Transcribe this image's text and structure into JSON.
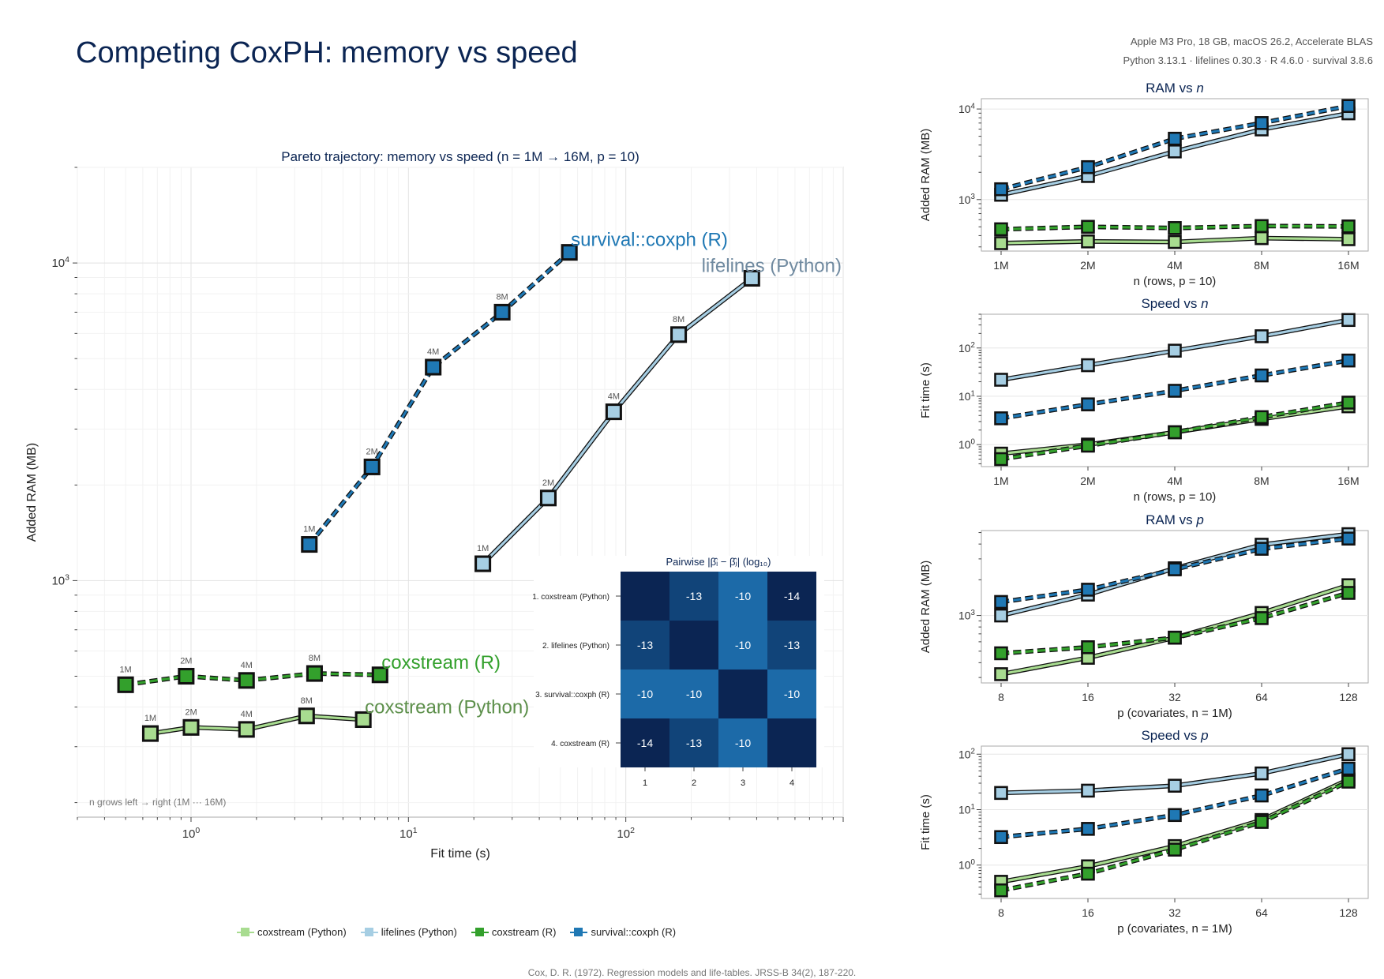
{
  "page": {
    "title": "Competing CoxPH: memory vs speed",
    "meta_line1": "Apple M3 Pro, 18 GB, macOS 26.2, Accelerate BLAS",
    "meta_line2": "Python 3.13.1 · lifelines 0.30.3 · R 4.6.0 · survival 3.8.6",
    "citation": "Cox, D. R. (1972). Regression models and life-tables. JRSS-B 34(2), 187-220."
  },
  "series_style": [
    {
      "name": "coxstream (Python)",
      "color": "#a8dc90",
      "dash": false
    },
    {
      "name": "lifelines (Python)",
      "color": "#a6cee3",
      "dash": false
    },
    {
      "name": "coxstream (R)",
      "color": "#33a02c",
      "dash": true
    },
    {
      "name": "survival::coxph (R)",
      "color": "#1f78b4",
      "dash": true
    }
  ],
  "chart_data": [
    {
      "id": "pareto",
      "type": "line",
      "title": "Pareto trajectory: memory vs speed  (n = 1M → 16M, p = 10)",
      "xlabel": "Fit time (s)",
      "ylabel": "Added RAM (MB)",
      "xscale": "log",
      "yscale": "log",
      "xlim": [
        0.3,
        1000
      ],
      "ylim": [
        180,
        20000
      ],
      "xticks": [
        {
          "v": 1,
          "label": "10^0"
        },
        {
          "v": 10,
          "label": "10^1"
        },
        {
          "v": 100,
          "label": "10^2"
        }
      ],
      "yticks": [
        {
          "v": 1000,
          "label": "10^3"
        },
        {
          "v": 10000,
          "label": "10^4"
        }
      ],
      "grid": true,
      "annotation": "n grows left → right (1M ··· 16M)",
      "point_labels": [
        "1M",
        "2M",
        "4M",
        "8M"
      ],
      "series": [
        {
          "name": "coxstream (Python)",
          "x": [
            0.65,
            1.0,
            1.8,
            3.4,
            6.2
          ],
          "y": [
            330,
            345,
            340,
            375,
            365
          ],
          "end_label": "coxstream (Python)",
          "end_color": "#5c8f4a"
        },
        {
          "name": "lifelines (Python)",
          "x": [
            22,
            44,
            88,
            175,
            380
          ],
          "y": [
            1130,
            1820,
            3400,
            5950,
            8950
          ],
          "end_label": "lifelines (Python)",
          "end_color": "#708aa0"
        },
        {
          "name": "coxstream (R)",
          "x": [
            0.5,
            0.95,
            1.8,
            3.7,
            7.4
          ],
          "y": [
            470,
            500,
            485,
            510,
            505
          ],
          "end_label": "coxstream (R)",
          "end_color": "#33a02c"
        },
        {
          "name": "survival::coxph (R)",
          "x": [
            3.5,
            6.8,
            13,
            27,
            55
          ],
          "y": [
            1300,
            2280,
            4700,
            7000,
            10800
          ],
          "end_label": "survival::coxph (R)",
          "end_color": "#1f78b4"
        }
      ]
    },
    {
      "id": "heatmap",
      "type": "heatmap",
      "title": "Pairwise |β̂ᵢ − β̂ⱼ|  (log₁₀)",
      "rows": [
        "1. coxstream (Python)",
        "2. lifelines (Python)",
        "3. survival::coxph (R)",
        "4. coxstream (R)"
      ],
      "cols": [
        "1",
        "2",
        "3",
        "4"
      ],
      "values": [
        [
          null,
          -13,
          -10,
          -14
        ],
        [
          -13,
          null,
          -10,
          -13
        ],
        [
          -10,
          -10,
          null,
          -10
        ],
        [
          -14,
          -13,
          -10,
          null
        ]
      ]
    },
    {
      "id": "ram_n",
      "type": "line",
      "title": "RAM vs ",
      "title_var": "n",
      "xlabel": "n (rows, p = 10)",
      "ylabel": "Added RAM (MB)",
      "categories": [
        "1M",
        "2M",
        "4M",
        "8M",
        "16M"
      ],
      "yscale": "log",
      "ylim": [
        270,
        13000
      ],
      "yticks": [
        {
          "v": 1000,
          "label": "10^3"
        },
        {
          "v": 10000,
          "label": "10^4"
        }
      ],
      "series": [
        {
          "name": "coxstream (Python)",
          "values": [
            330,
            345,
            340,
            375,
            365
          ]
        },
        {
          "name": "lifelines (Python)",
          "values": [
            1130,
            1820,
            3400,
            5950,
            8950
          ]
        },
        {
          "name": "coxstream (R)",
          "values": [
            470,
            500,
            485,
            510,
            505
          ]
        },
        {
          "name": "survival::coxph (R)",
          "values": [
            1300,
            2280,
            4700,
            7000,
            10800
          ]
        }
      ]
    },
    {
      "id": "speed_n",
      "type": "line",
      "title": "Speed vs ",
      "title_var": "n",
      "xlabel": "n (rows, p = 10)",
      "ylabel": "Fit time (s)",
      "categories": [
        "1M",
        "2M",
        "4M",
        "8M",
        "16M"
      ],
      "yscale": "log",
      "ylim": [
        0.35,
        500
      ],
      "yticks": [
        {
          "v": 1,
          "label": "10^0"
        },
        {
          "v": 10,
          "label": "10^1"
        },
        {
          "v": 100,
          "label": "10^2"
        }
      ],
      "series": [
        {
          "name": "coxstream (Python)",
          "values": [
            0.65,
            1.0,
            1.8,
            3.4,
            6.2
          ]
        },
        {
          "name": "lifelines (Python)",
          "values": [
            22,
            44,
            88,
            175,
            380
          ]
        },
        {
          "name": "coxstream (R)",
          "values": [
            0.5,
            0.95,
            1.8,
            3.7,
            7.4
          ]
        },
        {
          "name": "survival::coxph (R)",
          "values": [
            3.5,
            6.8,
            13,
            27,
            55
          ]
        }
      ]
    },
    {
      "id": "ram_p",
      "type": "line",
      "title": "RAM vs ",
      "title_var": "p",
      "xlabel": "p (covariates, n = 1M)",
      "ylabel": "Added RAM (MB)",
      "categories": [
        "8",
        "16",
        "32",
        "64",
        "128"
      ],
      "yscale": "log",
      "ylim": [
        270,
        5200
      ],
      "yticks": [
        {
          "v": 1000,
          "label": "10^3"
        }
      ],
      "series": [
        {
          "name": "coxstream (Python)",
          "values": [
            320,
            440,
            650,
            1050,
            1800
          ]
        },
        {
          "name": "lifelines (Python)",
          "values": [
            1000,
            1500,
            2500,
            3950,
            4850
          ]
        },
        {
          "name": "coxstream (R)",
          "values": [
            480,
            540,
            650,
            950,
            1550
          ]
        },
        {
          "name": "survival::coxph (R)",
          "values": [
            1300,
            1650,
            2450,
            3650,
            4450
          ]
        }
      ]
    },
    {
      "id": "speed_p",
      "type": "line",
      "title": "Speed vs ",
      "title_var": "p",
      "xlabel": "p (covariates, n = 1M)",
      "ylabel": "Fit time (s)",
      "categories": [
        "8",
        "16",
        "32",
        "64",
        "128"
      ],
      "yscale": "log",
      "ylim": [
        0.25,
        140
      ],
      "yticks": [
        {
          "v": 1,
          "label": "10^0"
        },
        {
          "v": 10,
          "label": "10^1"
        },
        {
          "v": 100,
          "label": "10^2"
        }
      ],
      "series": [
        {
          "name": "coxstream (Python)",
          "values": [
            0.5,
            0.95,
            2.2,
            6.5,
            35
          ]
        },
        {
          "name": "lifelines (Python)",
          "values": [
            20,
            22,
            27,
            45,
            100
          ]
        },
        {
          "name": "coxstream (R)",
          "values": [
            0.35,
            0.7,
            1.9,
            6.0,
            32
          ]
        },
        {
          "name": "survival::coxph (R)",
          "values": [
            3.2,
            4.5,
            8.0,
            18,
            55
          ]
        }
      ]
    }
  ]
}
